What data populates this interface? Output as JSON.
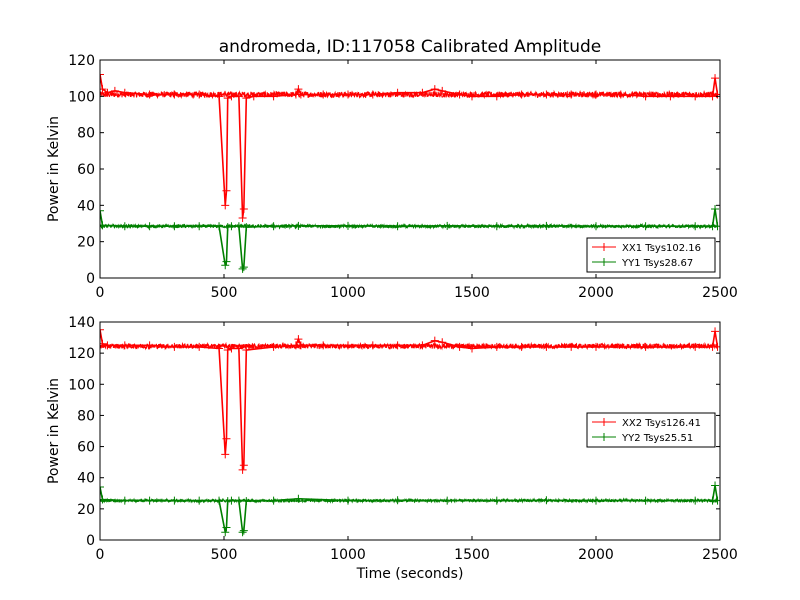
{
  "title": "andromeda, ID:117058 Calibrated Amplitude",
  "chart_data": [
    {
      "type": "line",
      "ylabel": "Power in Kelvin",
      "xlabel": "",
      "xlim": [
        0,
        2500
      ],
      "ylim": [
        0,
        120
      ],
      "xticks": [
        0,
        500,
        1000,
        1500,
        2000,
        2500
      ],
      "yticks": [
        0,
        20,
        40,
        60,
        80,
        100,
        120
      ],
      "legend_position": "lower-right",
      "series": [
        {
          "name": "XX1 Tsys102.16",
          "color": "#ff0000",
          "baseline": 101,
          "x": [
            0,
            10,
            30,
            60,
            100,
            200,
            300,
            400,
            480,
            505,
            510,
            515,
            530,
            560,
            575,
            580,
            590,
            620,
            700,
            790,
            800,
            810,
            900,
            1000,
            1100,
            1200,
            1300,
            1350,
            1380,
            1450,
            1500,
            1600,
            1700,
            1800,
            1900,
            2000,
            2100,
            2200,
            2300,
            2400,
            2470,
            2480,
            2490
          ],
          "y": [
            112,
            104,
            102,
            103,
            102,
            101,
            101,
            101,
            100,
            40,
            48,
            99,
            100,
            100,
            33,
            38,
            99,
            100,
            100,
            101,
            104,
            101,
            101,
            101,
            101,
            102,
            102,
            104,
            103,
            101,
            100,
            100,
            101,
            101,
            101,
            101,
            101,
            100,
            100,
            100,
            100,
            110,
            101
          ]
        },
        {
          "name": "YY1 Tsys28.67",
          "color": "#008000",
          "baseline": 28.5,
          "x": [
            0,
            10,
            100,
            200,
            300,
            400,
            480,
            505,
            510,
            515,
            530,
            560,
            575,
            580,
            590,
            700,
            800,
            1000,
            1200,
            1400,
            1600,
            1800,
            2000,
            2200,
            2400,
            2470,
            2480,
            2490
          ],
          "y": [
            37,
            29,
            28.5,
            28.5,
            28.5,
            28.5,
            28.5,
            7,
            9,
            28,
            28.5,
            28.5,
            5,
            6,
            28,
            28.5,
            28.7,
            28.7,
            28.5,
            28.7,
            28.5,
            28.7,
            28.5,
            28.5,
            28.5,
            28.5,
            38,
            28.5
          ]
        }
      ]
    },
    {
      "type": "line",
      "ylabel": "Power in Kelvin",
      "xlabel": "Time (seconds)",
      "xlim": [
        0,
        2500
      ],
      "ylim": [
        0,
        140
      ],
      "xticks": [
        0,
        500,
        1000,
        1500,
        2000,
        2500
      ],
      "yticks": [
        0,
        20,
        40,
        60,
        80,
        100,
        120,
        140
      ],
      "legend_position": "center-right",
      "series": [
        {
          "name": "XX2 Tsys126.41",
          "color": "#ff0000",
          "baseline": 124.5,
          "x": [
            0,
            10,
            30,
            100,
            200,
            300,
            400,
            480,
            505,
            510,
            515,
            530,
            560,
            575,
            580,
            590,
            700,
            790,
            800,
            810,
            900,
            1000,
            1100,
            1200,
            1300,
            1350,
            1380,
            1450,
            1500,
            1600,
            1700,
            1800,
            1900,
            2000,
            2200,
            2400,
            2470,
            2480,
            2490
          ],
          "y": [
            135,
            126,
            125,
            125,
            125,
            124,
            124,
            123,
            55,
            65,
            122,
            123,
            123,
            45,
            48,
            122,
            124,
            125,
            129,
            125,
            125,
            125,
            125,
            125,
            125,
            128,
            127,
            124,
            123,
            124,
            124,
            124,
            124,
            124,
            124,
            124,
            124,
            134,
            124
          ]
        },
        {
          "name": "YY2 Tsys25.51",
          "color": "#008000",
          "baseline": 25.3,
          "x": [
            0,
            10,
            100,
            200,
            300,
            400,
            480,
            505,
            510,
            515,
            530,
            560,
            575,
            580,
            590,
            700,
            800,
            1000,
            1200,
            1400,
            1600,
            1800,
            2000,
            2200,
            2400,
            2470,
            2480,
            2490
          ],
          "y": [
            34,
            26,
            25.3,
            25.3,
            25.3,
            25.3,
            25.3,
            5,
            8,
            25,
            25.3,
            25.3,
            5,
            6,
            25,
            25.3,
            26.5,
            25.3,
            25.5,
            25.3,
            25.3,
            25.5,
            25.3,
            25.3,
            25.3,
            25.3,
            35,
            25.3
          ]
        }
      ]
    }
  ]
}
